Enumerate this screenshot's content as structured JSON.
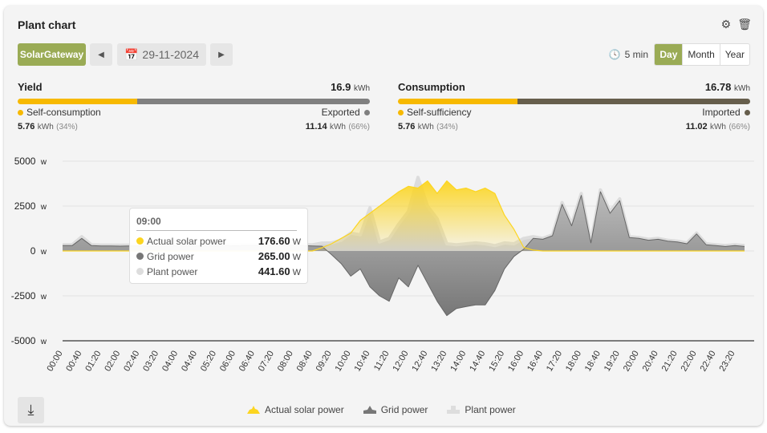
{
  "header": {
    "title": "Plant chart",
    "settings_icon": "gear-icon",
    "delete_icon": "trash-icon"
  },
  "toolbar": {
    "source": "SolarGateway",
    "date": "29-11-2024",
    "interval": "5 min",
    "periods": [
      "Day",
      "Month",
      "Year"
    ],
    "active_period": "Day"
  },
  "yield": {
    "label": "Yield",
    "total": "16.9",
    "unit": "kWh",
    "left_label": "Self-consumption",
    "left_value": "5.76",
    "left_pct": "(34%)",
    "right_label": "Exported",
    "right_value": "11.14",
    "right_pct": "(66%)",
    "fraction": 0.34,
    "left_color": "#f7b900",
    "right_color": "#808080"
  },
  "consumption": {
    "label": "Consumption",
    "total": "16.78",
    "unit": "kWh",
    "left_label": "Self-sufficiency",
    "left_value": "5.76",
    "left_pct": "(34%)",
    "right_label": "Imported",
    "right_value": "11.02",
    "right_pct": "(66%)",
    "fraction": 0.34,
    "left_color": "#f7b900",
    "right_color": "#665e4c"
  },
  "tooltip": {
    "time": "09:00",
    "rows": [
      {
        "label": "Actual solar power",
        "value": "176.60",
        "unit": "W",
        "color": "#fcd520"
      },
      {
        "label": "Grid power",
        "value": "265.00",
        "unit": "W",
        "color": "#777777"
      },
      {
        "label": "Plant power",
        "value": "441.60",
        "unit": "W",
        "color": "#d9d9d9"
      }
    ]
  },
  "chart_data": {
    "type": "area",
    "ylim": [
      -5000,
      5000
    ],
    "yticks": [
      "5000",
      "2500",
      "0",
      "-2500",
      "-5000"
    ],
    "yunit": "W",
    "xticks": [
      "00:00",
      "00:40",
      "01:20",
      "02:00",
      "02:40",
      "03:20",
      "04:00",
      "04:40",
      "05:20",
      "06:00",
      "06:40",
      "07:20",
      "08:00",
      "08:40",
      "09:20",
      "10:00",
      "10:40",
      "11:20",
      "12:00",
      "12:40",
      "13:20",
      "14:00",
      "14:40",
      "15:20",
      "16:00",
      "16:40",
      "17:20",
      "18:00",
      "18:40",
      "19:20",
      "20:00",
      "20:40",
      "21:20",
      "22:00",
      "22:40",
      "23:20"
    ],
    "x_step_minutes": 20,
    "series": [
      {
        "name": "Actual solar power",
        "color": "#fcd520",
        "values": [
          0,
          0,
          0,
          0,
          0,
          0,
          0,
          0,
          0,
          0,
          0,
          0,
          0,
          0,
          0,
          0,
          0,
          0,
          0,
          0,
          0,
          0,
          0,
          0,
          0,
          0,
          0,
          176.6,
          400,
          700,
          1000,
          1700,
          2100,
          2500,
          2900,
          3300,
          3600,
          3500,
          3900,
          3200,
          3900,
          3400,
          3500,
          3300,
          3500,
          3200,
          2000,
          1200,
          200,
          50,
          0,
          0,
          0,
          0,
          0,
          0,
          0,
          0,
          0,
          0,
          0,
          0,
          0,
          0,
          0,
          0,
          0,
          0,
          0,
          0,
          0,
          0
        ]
      },
      {
        "name": "Grid power",
        "color": "#777777",
        "values": [
          300,
          300,
          700,
          300,
          280,
          280,
          270,
          280,
          280,
          270,
          280,
          280,
          300,
          290,
          280,
          290,
          290,
          300,
          290,
          300,
          300,
          310,
          300,
          300,
          320,
          300,
          280,
          265,
          -200,
          -700,
          -1400,
          -1000,
          -2000,
          -2500,
          -2800,
          -1500,
          -2000,
          -800,
          -1800,
          -2800,
          -3600,
          -3200,
          -3100,
          -3000,
          -3000,
          -2200,
          -1000,
          -300,
          100,
          700,
          650,
          850,
          2600,
          1400,
          3100,
          450,
          3300,
          2100,
          2800,
          750,
          700,
          600,
          650,
          550,
          500,
          400,
          950,
          350,
          300,
          250,
          300,
          250
        ]
      },
      {
        "name": "Plant power",
        "color": "#d9d9d9",
        "values": [
          350,
          350,
          800,
          350,
          330,
          330,
          320,
          330,
          330,
          320,
          330,
          330,
          350,
          340,
          330,
          340,
          340,
          350,
          340,
          350,
          350,
          360,
          350,
          350,
          370,
          350,
          340,
          441.6,
          450,
          600,
          1000,
          900,
          2400,
          500,
          700,
          1500,
          2200,
          4100,
          2500,
          1800,
          400,
          350,
          400,
          450,
          400,
          300,
          450,
          400,
          700,
          800,
          700,
          900,
          2700,
          1500,
          3200,
          500,
          3400,
          2200,
          2900,
          800,
          750,
          650,
          700,
          600,
          550,
          450,
          1000,
          400,
          350,
          300,
          350,
          300
        ]
      }
    ]
  },
  "legend": [
    "Actual solar power",
    "Grid power",
    "Plant power"
  ],
  "footer": {
    "download_icon": "download-icon"
  }
}
